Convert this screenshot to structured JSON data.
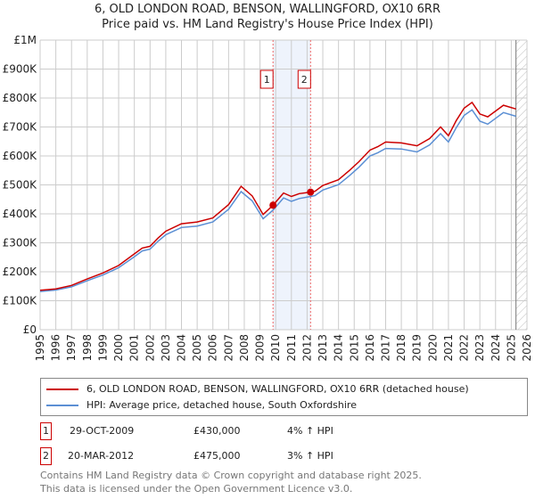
{
  "title": "6, OLD LONDON ROAD, BENSON, WALLINGFORD, OX10 6RR",
  "subtitle": "Price paid vs. HM Land Registry's House Price Index (HPI)",
  "chart_data": {
    "type": "line",
    "title": "6, OLD LONDON ROAD, BENSON, WALLINGFORD, OX10 6RR",
    "subtitle": "Price paid vs. HM Land Registry's House Price Index (HPI)",
    "xlim": [
      1995,
      2026
    ],
    "ylim": [
      0,
      1000000
    ],
    "grid": true,
    "x_ticks": [
      "1995",
      "1996",
      "1997",
      "1998",
      "1999",
      "2000",
      "2001",
      "2002",
      "2003",
      "2004",
      "2005",
      "2006",
      "2007",
      "2008",
      "2009",
      "2010",
      "2011",
      "2012",
      "2013",
      "2014",
      "2015",
      "2016",
      "2017",
      "2018",
      "2019",
      "2020",
      "2021",
      "2022",
      "2023",
      "2024",
      "2025",
      "2026"
    ],
    "y_ticks": [
      {
        "v": 0,
        "label": "£0"
      },
      {
        "v": 100000,
        "label": "£100K"
      },
      {
        "v": 200000,
        "label": "£200K"
      },
      {
        "v": 300000,
        "label": "£300K"
      },
      {
        "v": 400000,
        "label": "£400K"
      },
      {
        "v": 500000,
        "label": "£500K"
      },
      {
        "v": 600000,
        "label": "£600K"
      },
      {
        "v": 700000,
        "label": "£700K"
      },
      {
        "v": 800000,
        "label": "£800K"
      },
      {
        "v": 900000,
        "label": "£900K"
      },
      {
        "v": 1000000,
        "label": "£1M"
      }
    ],
    "x": [
      1995,
      1996,
      1997,
      1998,
      1999,
      2000,
      2001,
      2001.5,
      2002,
      2002.5,
      2003,
      2004,
      2005,
      2006,
      2007,
      2007.8,
      2008.5,
      2009.2,
      2009.83,
      2010.5,
      2011,
      2011.5,
      2012.22,
      2012.5,
      2013,
      2014,
      2014.7,
      2015.3,
      2016,
      2016.5,
      2017,
      2018,
      2019,
      2019.8,
      2020.5,
      2021,
      2021.5,
      2022,
      2022.5,
      2023,
      2023.5,
      2024,
      2024.5,
      2025.3
    ],
    "series": [
      {
        "name": "6, OLD LONDON ROAD, BENSON, WALLINGFORD, OX10 6RR (detached house)",
        "color": "#cc0000",
        "values": [
          136000,
          141000,
          153000,
          175000,
          196000,
          222000,
          262000,
          282000,
          288000,
          316000,
          340000,
          366000,
          372000,
          386000,
          432000,
          495000,
          462000,
          398000,
          430000,
          472000,
          460000,
          470000,
          475000,
          478000,
          498000,
          518000,
          550000,
          580000,
          620000,
          632000,
          648000,
          645000,
          635000,
          660000,
          700000,
          670000,
          722000,
          765000,
          785000,
          745000,
          735000,
          755000,
          775000,
          762000
        ]
      },
      {
        "name": "HPI: Average price, detached house, South Oxfordshire",
        "color": "#5b8fd4",
        "values": [
          132000,
          137000,
          148000,
          169000,
          189000,
          214000,
          252000,
          272000,
          278000,
          305000,
          328000,
          353000,
          358000,
          372000,
          416000,
          477000,
          445000,
          383000,
          413000,
          455000,
          443000,
          453000,
          460000,
          463000,
          482000,
          501000,
          532000,
          561000,
          600000,
          611000,
          626000,
          624000,
          614000,
          638000,
          677000,
          648000,
          698000,
          740000,
          759000,
          720000,
          710000,
          730000,
          750000,
          737000
        ]
      }
    ],
    "sales": [
      {
        "id": "1",
        "x": 2009.83,
        "price": 430000
      },
      {
        "id": "2",
        "x": 2012.22,
        "price": 475000
      }
    ],
    "forecast_hatch_from": 2025.3
  },
  "legend": [
    {
      "label": "6, OLD LONDON ROAD, BENSON, WALLINGFORD, OX10 6RR (detached house)",
      "color": "#cc0000"
    },
    {
      "label": "HPI: Average price, detached house, South Oxfordshire",
      "color": "#5b8fd4"
    }
  ],
  "transactions": [
    {
      "id": "1",
      "date": "29-OCT-2009",
      "price": "£430,000",
      "hpi": "4% ↑ HPI"
    },
    {
      "id": "2",
      "date": "20-MAR-2012",
      "price": "£475,000",
      "hpi": "3% ↑ HPI"
    }
  ],
  "footer": [
    "Contains HM Land Registry data © Crown copyright and database right 2025.",
    "This data is licensed under the Open Government Licence v3.0."
  ]
}
